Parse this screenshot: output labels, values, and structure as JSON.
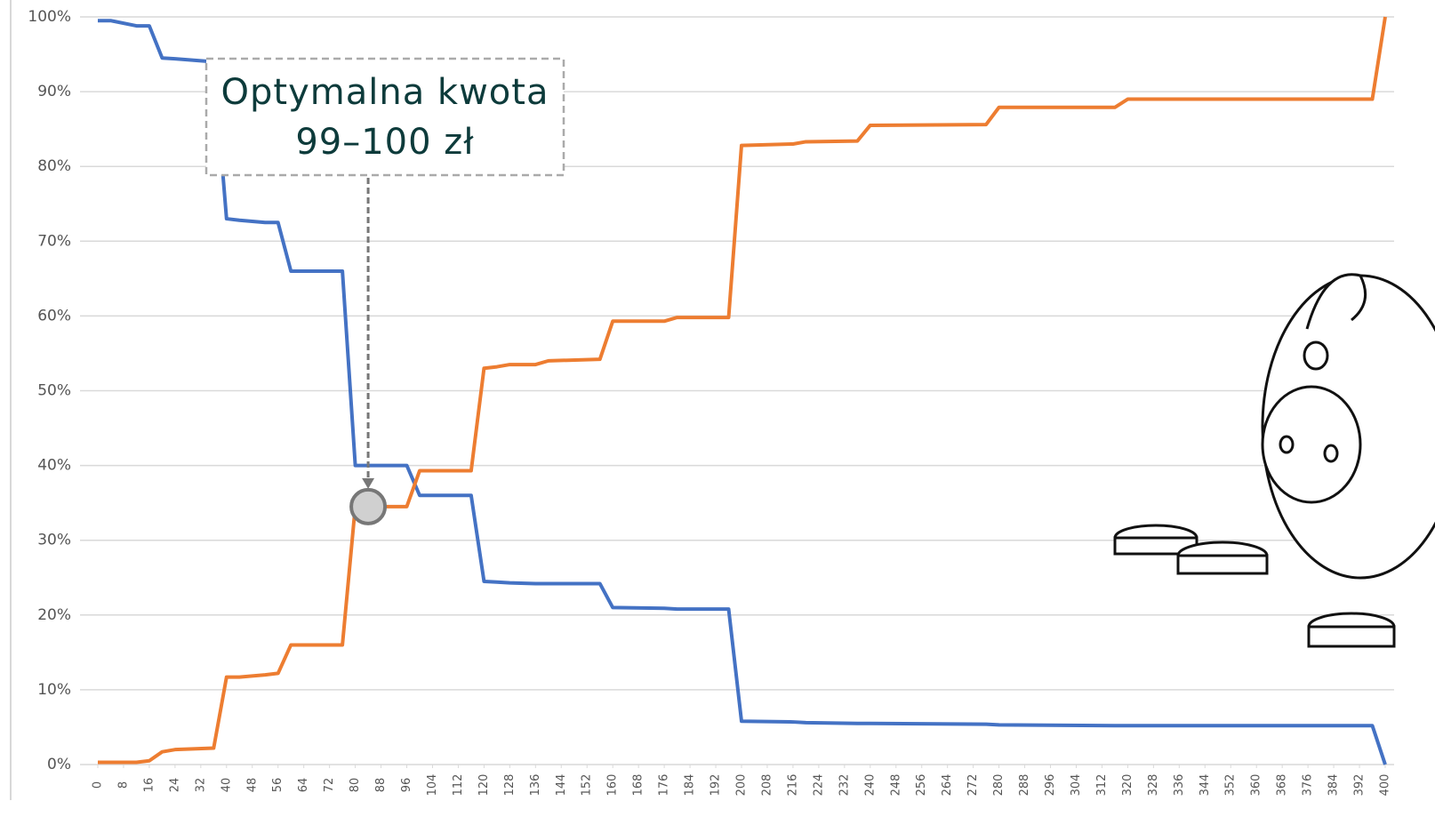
{
  "chart_data": {
    "type": "line",
    "x": [
      0,
      4,
      12,
      16,
      20,
      24,
      36,
      40,
      44,
      52,
      56,
      60,
      76,
      80,
      96,
      100,
      116,
      120,
      124,
      128,
      136,
      140,
      156,
      160,
      176,
      180,
      196,
      200,
      216,
      220,
      236,
      240,
      276,
      280,
      316,
      320,
      396,
      400
    ],
    "series": [
      {
        "color": "#4472c4",
        "values": [
          99.5,
          99.5,
          98.8,
          98.8,
          94.5,
          94.4,
          94,
          73,
          72.8,
          72.5,
          72.5,
          66,
          66,
          40,
          40,
          36,
          36,
          24.5,
          24.4,
          24.3,
          24.2,
          24.2,
          24.2,
          21,
          20.9,
          20.8,
          20.8,
          5.8,
          5.7,
          5.6,
          5.5,
          5.5,
          5.4,
          5.3,
          5.2,
          5.2,
          5.2,
          0
        ]
      },
      {
        "color": "#ed7d31",
        "values": [
          0.3,
          0.3,
          0.3,
          0.5,
          1.7,
          2.0,
          2.2,
          11.7,
          11.7,
          12,
          12.2,
          16,
          16,
          34.5,
          34.5,
          39.3,
          39.3,
          53,
          53.2,
          53.5,
          53.5,
          54,
          54.2,
          59.3,
          59.3,
          59.8,
          59.8,
          82.8,
          83,
          83.3,
          83.4,
          85.5,
          85.6,
          87.9,
          87.9,
          89,
          89,
          100
        ]
      }
    ],
    "xlim": [
      0,
      400
    ],
    "xticks": [
      0,
      8,
      16,
      24,
      32,
      40,
      48,
      56,
      64,
      72,
      80,
      88,
      96,
      104,
      112,
      120,
      128,
      136,
      144,
      152,
      160,
      168,
      176,
      184,
      192,
      200,
      208,
      216,
      224,
      232,
      240,
      248,
      256,
      264,
      272,
      280,
      288,
      296,
      304,
      312,
      320,
      328,
      336,
      344,
      352,
      360,
      368,
      376,
      384,
      392,
      400
    ],
    "ylim": [
      0,
      100
    ],
    "yticks": [
      {
        "value": 0,
        "label": "0%"
      },
      {
        "value": 10,
        "label": "10%"
      },
      {
        "value": 20,
        "label": "20%"
      },
      {
        "value": 30,
        "label": "30%"
      },
      {
        "value": 40,
        "label": "40%"
      },
      {
        "value": 50,
        "label": "50%"
      },
      {
        "value": 60,
        "label": "60%"
      },
      {
        "value": 70,
        "label": "70%"
      },
      {
        "value": 80,
        "label": "80%"
      },
      {
        "value": 90,
        "label": "90%"
      },
      {
        "value": 100,
        "label": "100%"
      }
    ],
    "grid": true,
    "annotation": {
      "lines": [
        "Optymalna kwota",
        "99–100 zł"
      ],
      "x": 84,
      "y": 34.5
    }
  }
}
